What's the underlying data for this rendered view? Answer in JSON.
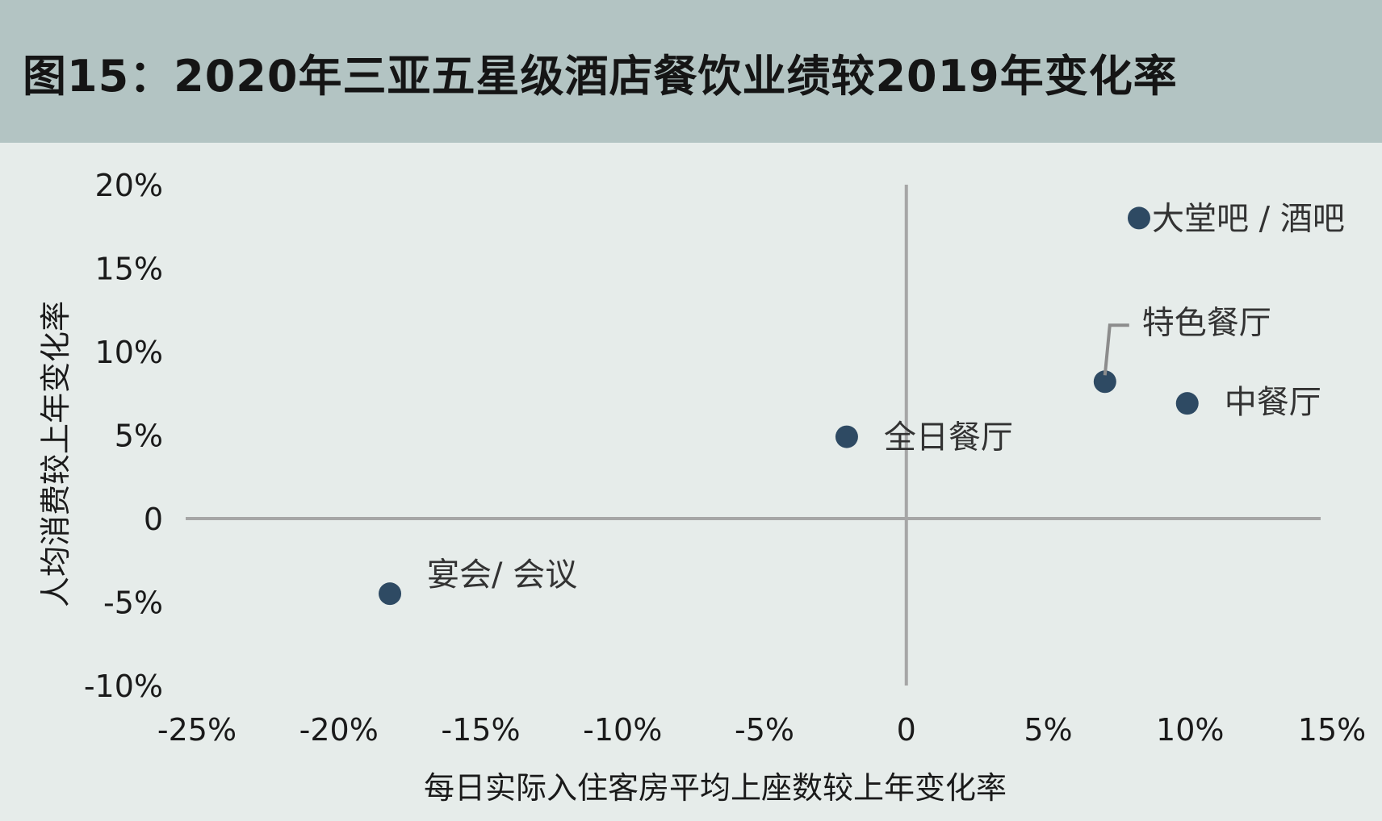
{
  "header": {
    "title": "图15：2020年三亚五星级酒店餐饮业绩较2019年变化率"
  },
  "colors": {
    "header_bg": "#b3c4c3",
    "plot_bg": "#e6ecea",
    "point": "#2e4a63",
    "axis": "#a6a6a6"
  },
  "chart_data": {
    "type": "scatter",
    "title": "",
    "xlabel": "每日实际入住客房平均上座数较上年变化率",
    "ylabel": "人均消费较上年变化率",
    "xlim": [
      -25,
      15
    ],
    "ylim": [
      -10,
      20
    ],
    "x_ticks": [
      -25,
      -20,
      -15,
      -10,
      -5,
      0,
      5,
      10,
      15
    ],
    "x_tick_labels": [
      "-25%",
      "-20%",
      "-15%",
      "-10%",
      "-5%",
      "0",
      "5%",
      "10%",
      "15%"
    ],
    "y_ticks": [
      20,
      15,
      10,
      5,
      0,
      -5,
      -10
    ],
    "y_tick_labels": [
      "20%",
      "15%",
      "10%",
      "5%",
      "0",
      "-5%",
      "-10%"
    ],
    "grid": false,
    "points": [
      {
        "label": "大堂吧 / 酒吧",
        "x": 8.2,
        "y": 18
      },
      {
        "label": "特色餐厅",
        "x": 7.0,
        "y": 8.2
      },
      {
        "label": "中餐厅",
        "x": 9.9,
        "y": 6.9
      },
      {
        "label": "全日餐厅",
        "x": -2.1,
        "y": 4.9
      },
      {
        "label": "宴会/ 会议",
        "x": -18.2,
        "y": -4.5
      }
    ]
  }
}
